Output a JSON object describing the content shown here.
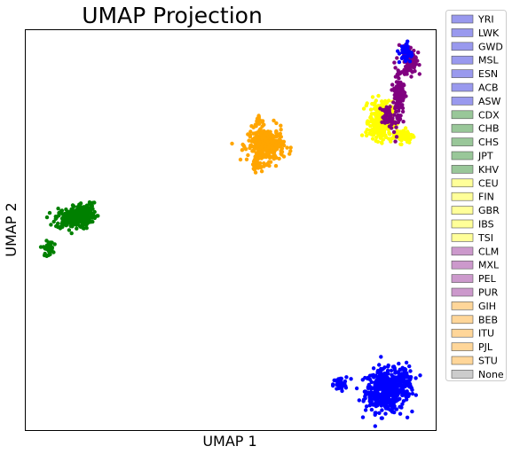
{
  "chart_data": {
    "type": "scatter",
    "title": "UMAP Projection",
    "xlabel": "UMAP 1",
    "ylabel": "UMAP 2",
    "xlim": [
      0,
      100
    ],
    "ylim": [
      0,
      100
    ],
    "show_ticks": false,
    "grid": false,
    "legend_placement": "outside-right",
    "legend": [
      {
        "label": "YRI",
        "color": "#9999ee"
      },
      {
        "label": "LWK",
        "color": "#9999ee"
      },
      {
        "label": "GWD",
        "color": "#9999ee"
      },
      {
        "label": "MSL",
        "color": "#9999ee"
      },
      {
        "label": "ESN",
        "color": "#9999ee"
      },
      {
        "label": "ACB",
        "color": "#9999ee"
      },
      {
        "label": "ASW",
        "color": "#9999ee"
      },
      {
        "label": "CDX",
        "color": "#99c799"
      },
      {
        "label": "CHB",
        "color": "#99c799"
      },
      {
        "label": "CHS",
        "color": "#99c799"
      },
      {
        "label": "JPT",
        "color": "#99c799"
      },
      {
        "label": "KHV",
        "color": "#99c799"
      },
      {
        "label": "CEU",
        "color": "#ffff99"
      },
      {
        "label": "FIN",
        "color": "#ffff99"
      },
      {
        "label": "GBR",
        "color": "#ffff99"
      },
      {
        "label": "IBS",
        "color": "#ffff99"
      },
      {
        "label": "TSI",
        "color": "#ffff99"
      },
      {
        "label": "CLM",
        "color": "#cc99cc"
      },
      {
        "label": "MXL",
        "color": "#cc99cc"
      },
      {
        "label": "PEL",
        "color": "#cc99cc"
      },
      {
        "label": "PUR",
        "color": "#cc99cc"
      },
      {
        "label": "GIH",
        "color": "#ffd699"
      },
      {
        "label": "BEB",
        "color": "#ffd699"
      },
      {
        "label": "ITU",
        "color": "#ffd699"
      },
      {
        "label": "PJL",
        "color": "#ffd699"
      },
      {
        "label": "STU",
        "color": "#ffd699"
      },
      {
        "label": "None",
        "color": "#cccccc"
      }
    ],
    "clusters": [
      {
        "color": "#0000ff",
        "x": 87.7,
        "y": 9.8,
        "sx": 2.4,
        "sy": 2.6,
        "n": 460
      },
      {
        "color": "#0000ff",
        "x": 92.1,
        "y": 12.1,
        "sx": 1.3,
        "sy": 2.0,
        "n": 110
      },
      {
        "color": "#0000ff",
        "x": 76.6,
        "y": 11.4,
        "sx": 0.8,
        "sy": 0.9,
        "n": 45
      },
      {
        "color": "#008000",
        "x": 11.6,
        "y": 52.9,
        "sx": 2.2,
        "sy": 1.3,
        "n": 220
      },
      {
        "color": "#008000",
        "x": 14.4,
        "y": 54.6,
        "sx": 1.4,
        "sy": 1.1,
        "n": 110
      },
      {
        "color": "#008000",
        "x": 5.5,
        "y": 45.4,
        "sx": 0.6,
        "sy": 0.9,
        "n": 40
      },
      {
        "color": "#ffa500",
        "x": 58.6,
        "y": 71.3,
        "sx": 2.2,
        "sy": 2.1,
        "n": 330
      },
      {
        "color": "#ffa500",
        "x": 56.3,
        "y": 66.3,
        "sx": 0.6,
        "sy": 0.9,
        "n": 25
      },
      {
        "color": "#ffa500",
        "x": 56.9,
        "y": 77.5,
        "sx": 0.4,
        "sy": 1.0,
        "n": 12
      },
      {
        "color": "#ffff00",
        "x": 86.7,
        "y": 77.3,
        "sx": 1.4,
        "sy": 2.4,
        "n": 300
      },
      {
        "color": "#ffff00",
        "x": 92.1,
        "y": 73.6,
        "sx": 1.3,
        "sy": 0.9,
        "n": 70
      },
      {
        "color": "#800080",
        "x": 93.8,
        "y": 92.7,
        "sx": 0.8,
        "sy": 1.7,
        "n": 140
      },
      {
        "color": "#800080",
        "x": 90.9,
        "y": 83.6,
        "sx": 0.7,
        "sy": 3.8,
        "n": 120
      },
      {
        "color": "#800080",
        "x": 88.4,
        "y": 78.4,
        "sx": 0.8,
        "sy": 1.3,
        "n": 45
      },
      {
        "color": "#0000ff",
        "x": 92.7,
        "y": 94.3,
        "sx": 0.8,
        "sy": 1.4,
        "n": 40
      }
    ]
  }
}
